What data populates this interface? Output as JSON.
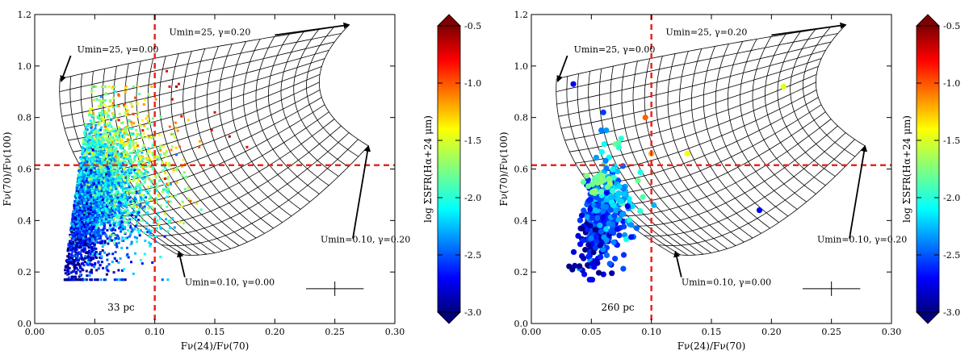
{
  "chart_data": [
    {
      "type": "scatter",
      "xlabel": "Fν(24)/Fν(70)",
      "ylabel": "Fν(70)/Fν(100)",
      "xlim": [
        0.0,
        0.3
      ],
      "ylim": [
        0.0,
        1.2
      ],
      "xticks": [
        "0.00",
        "0.05",
        "0.10",
        "0.15",
        "0.20",
        "0.25",
        "0.30"
      ],
      "yticks": [
        "0.0",
        "0.2",
        "0.4",
        "0.6",
        "0.8",
        "1.0",
        "1.2"
      ],
      "scale_label": "33 pc",
      "reference_lines": {
        "x": 0.1,
        "y": 0.615,
        "color": "#e8261f"
      },
      "annotations": [
        {
          "text": "Umin=25, γ=0.00",
          "arrow_from": [
            0.03,
            1.04
          ],
          "arrow_to": [
            0.022,
            0.94
          ]
        },
        {
          "text": "Umin=25, γ=0.20",
          "arrow_from": [
            0.2,
            1.12
          ],
          "arrow_to": [
            0.262,
            1.16
          ]
        },
        {
          "text": "Umin=0.10, γ=0.20",
          "arrow_from": [
            0.265,
            0.33
          ],
          "arrow_to": [
            0.278,
            0.69
          ]
        },
        {
          "text": "Umin=0.10, γ=0.00",
          "arrow_from": [
            0.125,
            0.18
          ],
          "arrow_to": [
            0.12,
            0.28
          ]
        }
      ],
      "points": {
        "count_approx": 4200,
        "core": {
          "x": [
            0.02,
            0.1
          ],
          "y": [
            0.2,
            0.85
          ]
        },
        "mean_trend": "lower-left blue (log ΣSFR ≈ -2.8) to upper-right green/yellow (≈ -1.5)",
        "outliers_red_to_orange": [
          [
            0.07,
            0.79
          ],
          [
            0.09,
            0.75
          ],
          [
            0.11,
            0.98
          ],
          [
            0.12,
            0.93
          ],
          [
            0.15,
            0.82
          ]
        ]
      },
      "colorbar": {
        "label": "log ΣSFR(Hα+24 μm)",
        "range": [
          -3.0,
          -0.5
        ],
        "ticks": [
          "-0.5",
          "-1.0",
          "-1.5",
          "-2.0",
          "-2.5",
          "-3.0"
        ],
        "colormap": "jet"
      }
    },
    {
      "type": "scatter",
      "xlabel": "Fν(24)/Fν(70)",
      "ylabel": "Fν(70)/Fν(100)",
      "xlim": [
        0.0,
        0.3
      ],
      "ylim": [
        0.0,
        1.2
      ],
      "xticks": [
        "0.00",
        "0.05",
        "0.10",
        "0.15",
        "0.20",
        "0.25",
        "0.30"
      ],
      "yticks": [
        "0.0",
        "0.2",
        "0.4",
        "0.6",
        "0.8",
        "1.0",
        "1.2"
      ],
      "scale_label": "260 pc",
      "reference_lines": {
        "x": 0.1,
        "y": 0.615,
        "color": "#e8261f"
      },
      "annotations": [
        {
          "text": "Umin=25, γ=0.00",
          "arrow_from": [
            0.03,
            1.04
          ],
          "arrow_to": [
            0.022,
            0.94
          ]
        },
        {
          "text": "Umin=25, γ=0.20",
          "arrow_from": [
            0.2,
            1.12
          ],
          "arrow_to": [
            0.262,
            1.16
          ]
        },
        {
          "text": "Umin=0.10, γ=0.20",
          "arrow_from": [
            0.265,
            0.33
          ],
          "arrow_to": [
            0.278,
            0.69
          ]
        },
        {
          "text": "Umin=0.10, γ=0.00",
          "arrow_from": [
            0.125,
            0.18
          ],
          "arrow_to": [
            0.12,
            0.28
          ]
        }
      ],
      "points": {
        "count_approx": 380,
        "core": {
          "x": [
            0.02,
            0.1
          ],
          "y": [
            0.17,
            0.72
          ]
        },
        "notable": [
          [
            0.035,
            0.93
          ],
          [
            0.06,
            0.82
          ],
          [
            0.095,
            0.8
          ],
          [
            0.1,
            0.66
          ],
          [
            0.13,
            0.66
          ],
          [
            0.21,
            0.92
          ],
          [
            0.19,
            0.44
          ]
        ]
      },
      "colorbar": {
        "label": "log ΣSFR(Hα+24 μm)",
        "range": [
          -3.0,
          -0.5
        ],
        "ticks": [
          "-0.5",
          "-1.0",
          "-1.5",
          "-2.0",
          "-2.5",
          "-3.0"
        ],
        "colormap": "jet"
      }
    }
  ]
}
